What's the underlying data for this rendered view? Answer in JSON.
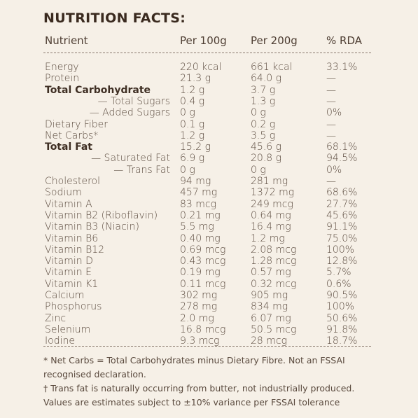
{
  "header": {
    "title": "NUTRITION FACTS:"
  },
  "table": {
    "columns": [
      "Nutrient",
      "Per 100g",
      "Per 200g",
      "% RDA"
    ],
    "rows": [
      [
        "Energy",
        "220 kcal",
        "661 kcal",
        "33.1%"
      ],
      [
        "Protein",
        "21.3 g",
        "64.0 g",
        "—"
      ],
      [
        "Total Carbohydrate",
        "1.2 g",
        "3.7 g",
        "—"
      ],
      [
        "— Total Sugars",
        "0.4 g",
        "1.3 g",
        "—"
      ],
      [
        "— Added Sugars",
        "0 g",
        "0 g",
        "0%"
      ],
      [
        "Dietary Fiber",
        "0.1 g",
        "0.2 g",
        "—"
      ],
      [
        "Net Carbs*",
        "1.2 g",
        "3.5 g",
        "—"
      ],
      [
        "Total Fat",
        "15.2 g",
        "45.6 g",
        "68.1%"
      ],
      [
        "— Saturated Fat",
        "6.9 g",
        "20.8 g",
        "94.5%"
      ],
      [
        "— Trans Fat",
        "0 g",
        "0 g",
        "0%"
      ],
      [
        "Cholesterol",
        "94 mg",
        "281 mg",
        "—"
      ],
      [
        "Sodium",
        "457 mg",
        "1372 mg",
        "68.6%"
      ],
      [
        "Vitamin A",
        "83 mcg",
        "249 mcg",
        "27.7%"
      ],
      [
        "Vitamin B2 (Riboflavin)",
        "0.21 mg",
        "0.64 mg",
        "45.6%"
      ],
      [
        "Vitamin B3 (Niacin)",
        "5.5 mg",
        "16.4 mg",
        "91.1%"
      ],
      [
        "Vitamin B6",
        "0.40 mg",
        "1.2 mg",
        "75.0%"
      ],
      [
        "Vitamin B12",
        "0.69 mcg",
        "2.08 mcg",
        "100%"
      ],
      [
        "Vitamin D",
        "0.43 mcg",
        "1.28 mcg",
        "12.8%"
      ],
      [
        "Vitamin E",
        "0.19 mg",
        "0.57 mg",
        "5.7%"
      ],
      [
        "Vitamin K1",
        "0.11 mcg",
        "0.32 mcg",
        "0.6%"
      ],
      [
        "Calcium",
        "302 mg",
        "905 mg",
        "90.5%"
      ],
      [
        "Phosphorus",
        "278 mg",
        "834 mg",
        "100%"
      ],
      [
        "Zinc",
        "2.0 mg",
        "6.07 mg",
        "50.6%"
      ],
      [
        "Selenium",
        "16.8 mcg",
        "50.5 mcg",
        "91.8%"
      ],
      [
        "Iodine",
        "9.3 mcg",
        "28 mcg",
        "18.7%"
      ]
    ]
  },
  "footnotes": [
    "* Net Carbs = Total Carbohydrates minus Dietary Fibre. Not an FSSAI recognised declaration.",
    "† Trans fat is naturally occurring from butter, not industrially produced.",
    "Values are estimates subject to ±10% variance per FSSAI tolerance"
  ]
}
